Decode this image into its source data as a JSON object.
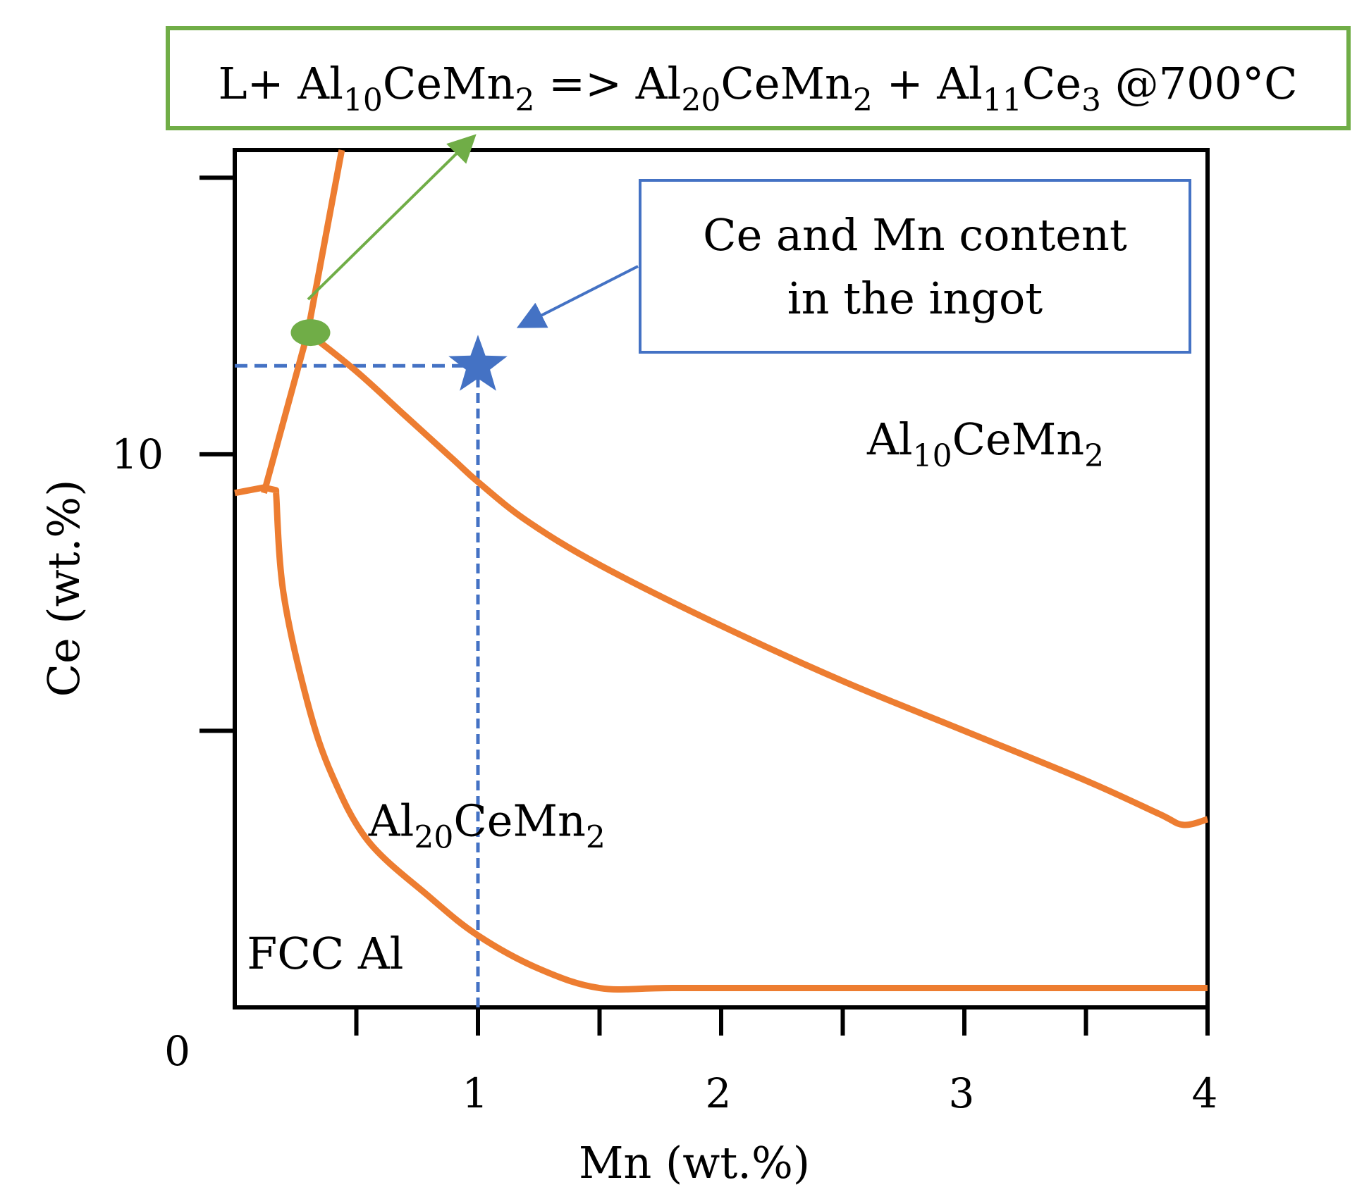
{
  "chart_data": {
    "type": "line",
    "title": "",
    "xlabel": "Mn (wt.%)",
    "ylabel": "Ce (wt.%)",
    "xlim": [
      0,
      4
    ],
    "ylim": [
      0,
      15.5
    ],
    "x_ticks": [
      0.5,
      1,
      1.5,
      2,
      2.5,
      3,
      3.5,
      4
    ],
    "x_tick_labels": [
      {
        "x": 1,
        "label": "1"
      },
      {
        "x": 2,
        "label": "2"
      },
      {
        "x": 3,
        "label": "3"
      },
      {
        "x": 4,
        "label": "4"
      }
    ],
    "y_ticks": [
      5,
      10,
      15
    ],
    "y_tick_labels": [
      {
        "y": 10,
        "label": "10"
      },
      {
        "y": 0,
        "label": "0"
      }
    ],
    "grid": false,
    "legend": "none",
    "line_color": "#ED7D31",
    "boundaries": [
      {
        "id": "upper-boundary",
        "points": [
          [
            0.3,
            12.2
          ],
          [
            0.5,
            11.5
          ],
          [
            0.7,
            10.7
          ],
          [
            0.9,
            9.9
          ],
          [
            1.0,
            9.5
          ],
          [
            1.2,
            8.8
          ],
          [
            1.5,
            8.0
          ],
          [
            2.0,
            6.9
          ],
          [
            2.5,
            5.9
          ],
          [
            3.0,
            5.0
          ],
          [
            3.5,
            4.1
          ],
          [
            3.8,
            3.5
          ],
          [
            3.9,
            3.3
          ],
          [
            4.0,
            3.4
          ]
        ]
      },
      {
        "id": "lower-boundary",
        "points": [
          [
            0.17,
            9.3
          ],
          [
            0.2,
            7.5
          ],
          [
            0.3,
            5.5
          ],
          [
            0.4,
            4.2
          ],
          [
            0.55,
            3.0
          ],
          [
            0.8,
            2.0
          ],
          [
            1.0,
            1.3
          ],
          [
            1.25,
            0.7
          ],
          [
            1.5,
            0.35
          ],
          [
            1.8,
            0.35
          ],
          [
            2.5,
            0.35
          ],
          [
            3.0,
            0.35
          ],
          [
            4.0,
            0.35
          ]
        ]
      },
      {
        "id": "left-boundary",
        "points": [
          [
            0.44,
            15.5
          ],
          [
            0.3,
            12.2
          ],
          [
            0.12,
            9.3
          ]
        ]
      },
      {
        "id": "hook-segment",
        "points": [
          [
            0.0,
            9.3
          ],
          [
            0.12,
            9.4
          ],
          [
            0.17,
            9.35
          ],
          [
            0.17,
            9.3
          ]
        ]
      }
    ],
    "guide_color": "#4472C4",
    "horizontal_guide": {
      "y": 11.6,
      "from_x": 0,
      "to_x": 1.0
    },
    "vertical_guide": {
      "x": 1.0,
      "from_y": 0,
      "to_y": 11.6
    },
    "star_point": {
      "x": 1.0,
      "y": 11.6,
      "color": "#4472C4"
    },
    "invariant_point": {
      "x": 0.3,
      "y": 12.2,
      "color": "#70AD47"
    },
    "region_labels": [
      {
        "id": "al10",
        "parts": [
          {
            "t": "Al",
            "sub": "10"
          },
          {
            "t": "CeMn",
            "sub": "2"
          }
        ],
        "x": 2.6,
        "y": 10.0
      },
      {
        "id": "al20",
        "parts": [
          {
            "t": "Al",
            "sub": "20"
          },
          {
            "t": "CeMn",
            "sub": "2"
          }
        ],
        "x": 0.55,
        "y": 3.1
      },
      {
        "id": "fcc",
        "parts": [
          {
            "t": "FCC Al"
          }
        ],
        "x": 0.05,
        "y": 0.7
      }
    ],
    "annotations": [
      {
        "id": "reaction",
        "color": "#70AD47",
        "parts": [
          {
            "t": "L+ Al",
            "sub": "10"
          },
          {
            "t": "CeMn",
            "sub": "2"
          },
          {
            "t": " => Al",
            "sub": "20"
          },
          {
            "t": "CeMn",
            "sub": "2"
          },
          {
            "t": " + Al",
            "sub": "11"
          },
          {
            "t": "Ce",
            "sub": "3"
          },
          {
            "t": " @700°C"
          }
        ]
      },
      {
        "id": "ingot",
        "color": "#4472C4",
        "lines": [
          "Ce and Mn content",
          "in the ingot"
        ]
      }
    ]
  }
}
